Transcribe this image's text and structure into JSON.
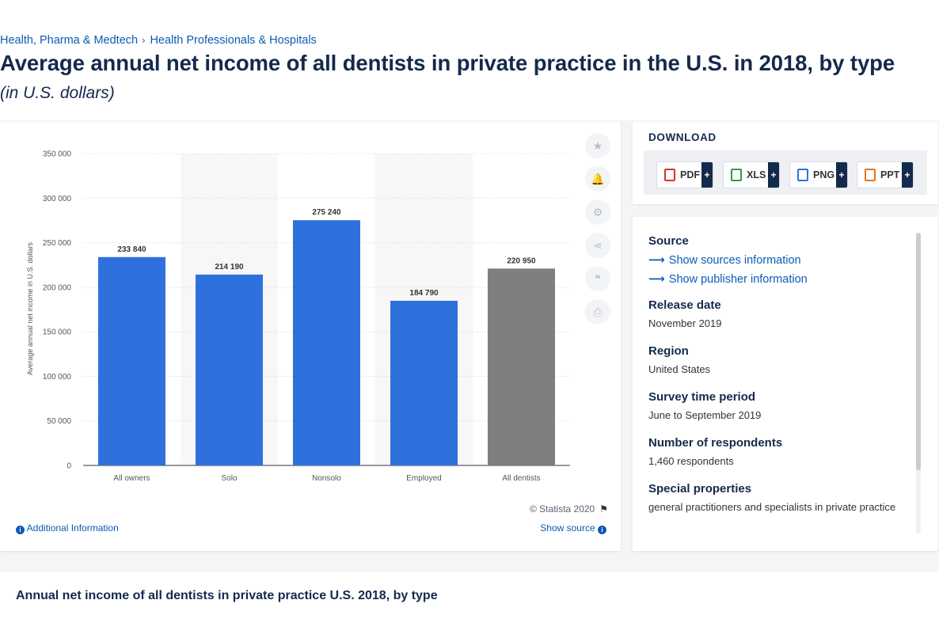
{
  "breadcrumb": {
    "items": [
      "Health, Pharma & Medtech",
      "Health Professionals & Hospitals"
    ],
    "separator": "›"
  },
  "header": {
    "title": "Average annual net income of all dentists in private practice in the U.S. in 2018, by type",
    "subtitle": "(in U.S. dollars)"
  },
  "chart_data": {
    "type": "bar",
    "categories": [
      "All owners",
      "Solo",
      "Nonsolo",
      "Employed",
      "All dentists"
    ],
    "values": [
      233840,
      214190,
      275240,
      184790,
      220950
    ],
    "value_labels": [
      "233 840",
      "214 190",
      "275 240",
      "184 790",
      "220 950"
    ],
    "ylabel": "Average annual net income in U.S. dollars",
    "ylim": [
      0,
      350000
    ],
    "yticks": [
      0,
      50000,
      100000,
      150000,
      200000,
      250000,
      300000,
      350000
    ],
    "ytick_labels": [
      "0",
      "50 000",
      "100 000",
      "150 000",
      "200 000",
      "250 000",
      "300 000",
      "350 000"
    ],
    "colors": [
      "#2f71dc",
      "#2f71dc",
      "#2f71dc",
      "#2f71dc",
      "#7f7f7f"
    ],
    "grid": true,
    "legend": "none"
  },
  "chart_footer": {
    "copyright": "© Statista 2020",
    "additional_info": "Additional Information",
    "show_source": "Show source"
  },
  "tools": [
    {
      "icon": "star-icon",
      "glyph": "★"
    },
    {
      "icon": "bell-icon",
      "glyph": "🔔"
    },
    {
      "icon": "gear-icon",
      "glyph": "⚙"
    },
    {
      "icon": "share-icon",
      "glyph": "⋖"
    },
    {
      "icon": "quote-icon",
      "glyph": "❝"
    },
    {
      "icon": "print-icon",
      "glyph": "⎙"
    }
  ],
  "download": {
    "title": "DOWNLOAD",
    "buttons": [
      {
        "label": "PDF",
        "color": "#d9342b"
      },
      {
        "label": "XLS",
        "color": "#2e9b48"
      },
      {
        "label": "PNG",
        "color": "#2f71dc"
      },
      {
        "label": "PPT",
        "color": "#e8751a"
      }
    ],
    "plus": "+"
  },
  "meta": {
    "source_label": "Source",
    "show_sources": "Show sources information",
    "show_publisher": "Show publisher information",
    "release_label": "Release date",
    "release_value": "November 2019",
    "region_label": "Region",
    "region_value": "United States",
    "survey_label": "Survey time period",
    "survey_value": "June to September 2019",
    "respondents_label": "Number of respondents",
    "respondents_value": "1,460 respondents",
    "special_label": "Special properties",
    "special_value": "general practitioners and specialists in private practice"
  },
  "bottom": {
    "title": "Annual net income of all dentists in private practice U.S. 2018, by type"
  }
}
